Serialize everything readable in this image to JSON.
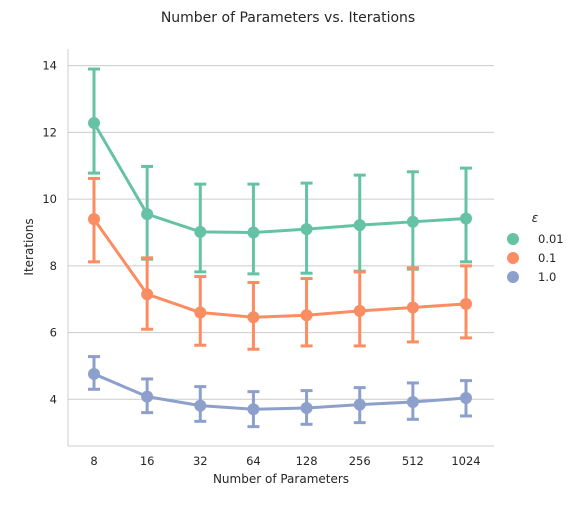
{
  "chart_data": {
    "type": "line",
    "title": "Number of Parameters vs. Iterations",
    "xlabel": "Number of Parameters",
    "ylabel": "Iterations",
    "categories": [
      "8",
      "16",
      "32",
      "64",
      "128",
      "256",
      "512",
      "1024"
    ],
    "yticks": [
      4,
      6,
      8,
      10,
      12,
      14
    ],
    "ylim": [
      2.6,
      14.5
    ],
    "grid": "horizontal",
    "legend": {
      "title": "ε",
      "placement": "right"
    },
    "series": [
      {
        "name": "0.01",
        "color": "#66c2a5",
        "values": [
          12.28,
          9.55,
          9.02,
          9.0,
          9.1,
          9.22,
          9.32,
          9.42
        ],
        "err_low": [
          10.78,
          8.2,
          7.82,
          7.76,
          7.78,
          7.84,
          7.9,
          8.12
        ],
        "err_high": [
          13.9,
          10.98,
          10.45,
          10.45,
          10.48,
          10.72,
          10.82,
          10.93
        ]
      },
      {
        "name": "0.1",
        "color": "#fc8d62",
        "values": [
          9.4,
          7.15,
          6.6,
          6.46,
          6.52,
          6.65,
          6.75,
          6.86
        ],
        "err_low": [
          8.12,
          6.1,
          5.62,
          5.5,
          5.6,
          5.6,
          5.72,
          5.84
        ],
        "err_high": [
          10.62,
          8.24,
          7.68,
          7.5,
          7.62,
          7.82,
          7.94,
          8.0
        ]
      },
      {
        "name": "1.0",
        "color": "#8da0cb",
        "values": [
          4.76,
          4.08,
          3.81,
          3.7,
          3.74,
          3.84,
          3.92,
          4.04
        ],
        "err_low": [
          4.3,
          3.6,
          3.34,
          3.18,
          3.25,
          3.3,
          3.4,
          3.5
        ],
        "err_high": [
          5.28,
          4.61,
          4.38,
          4.23,
          4.26,
          4.35,
          4.49,
          4.56
        ]
      }
    ]
  }
}
